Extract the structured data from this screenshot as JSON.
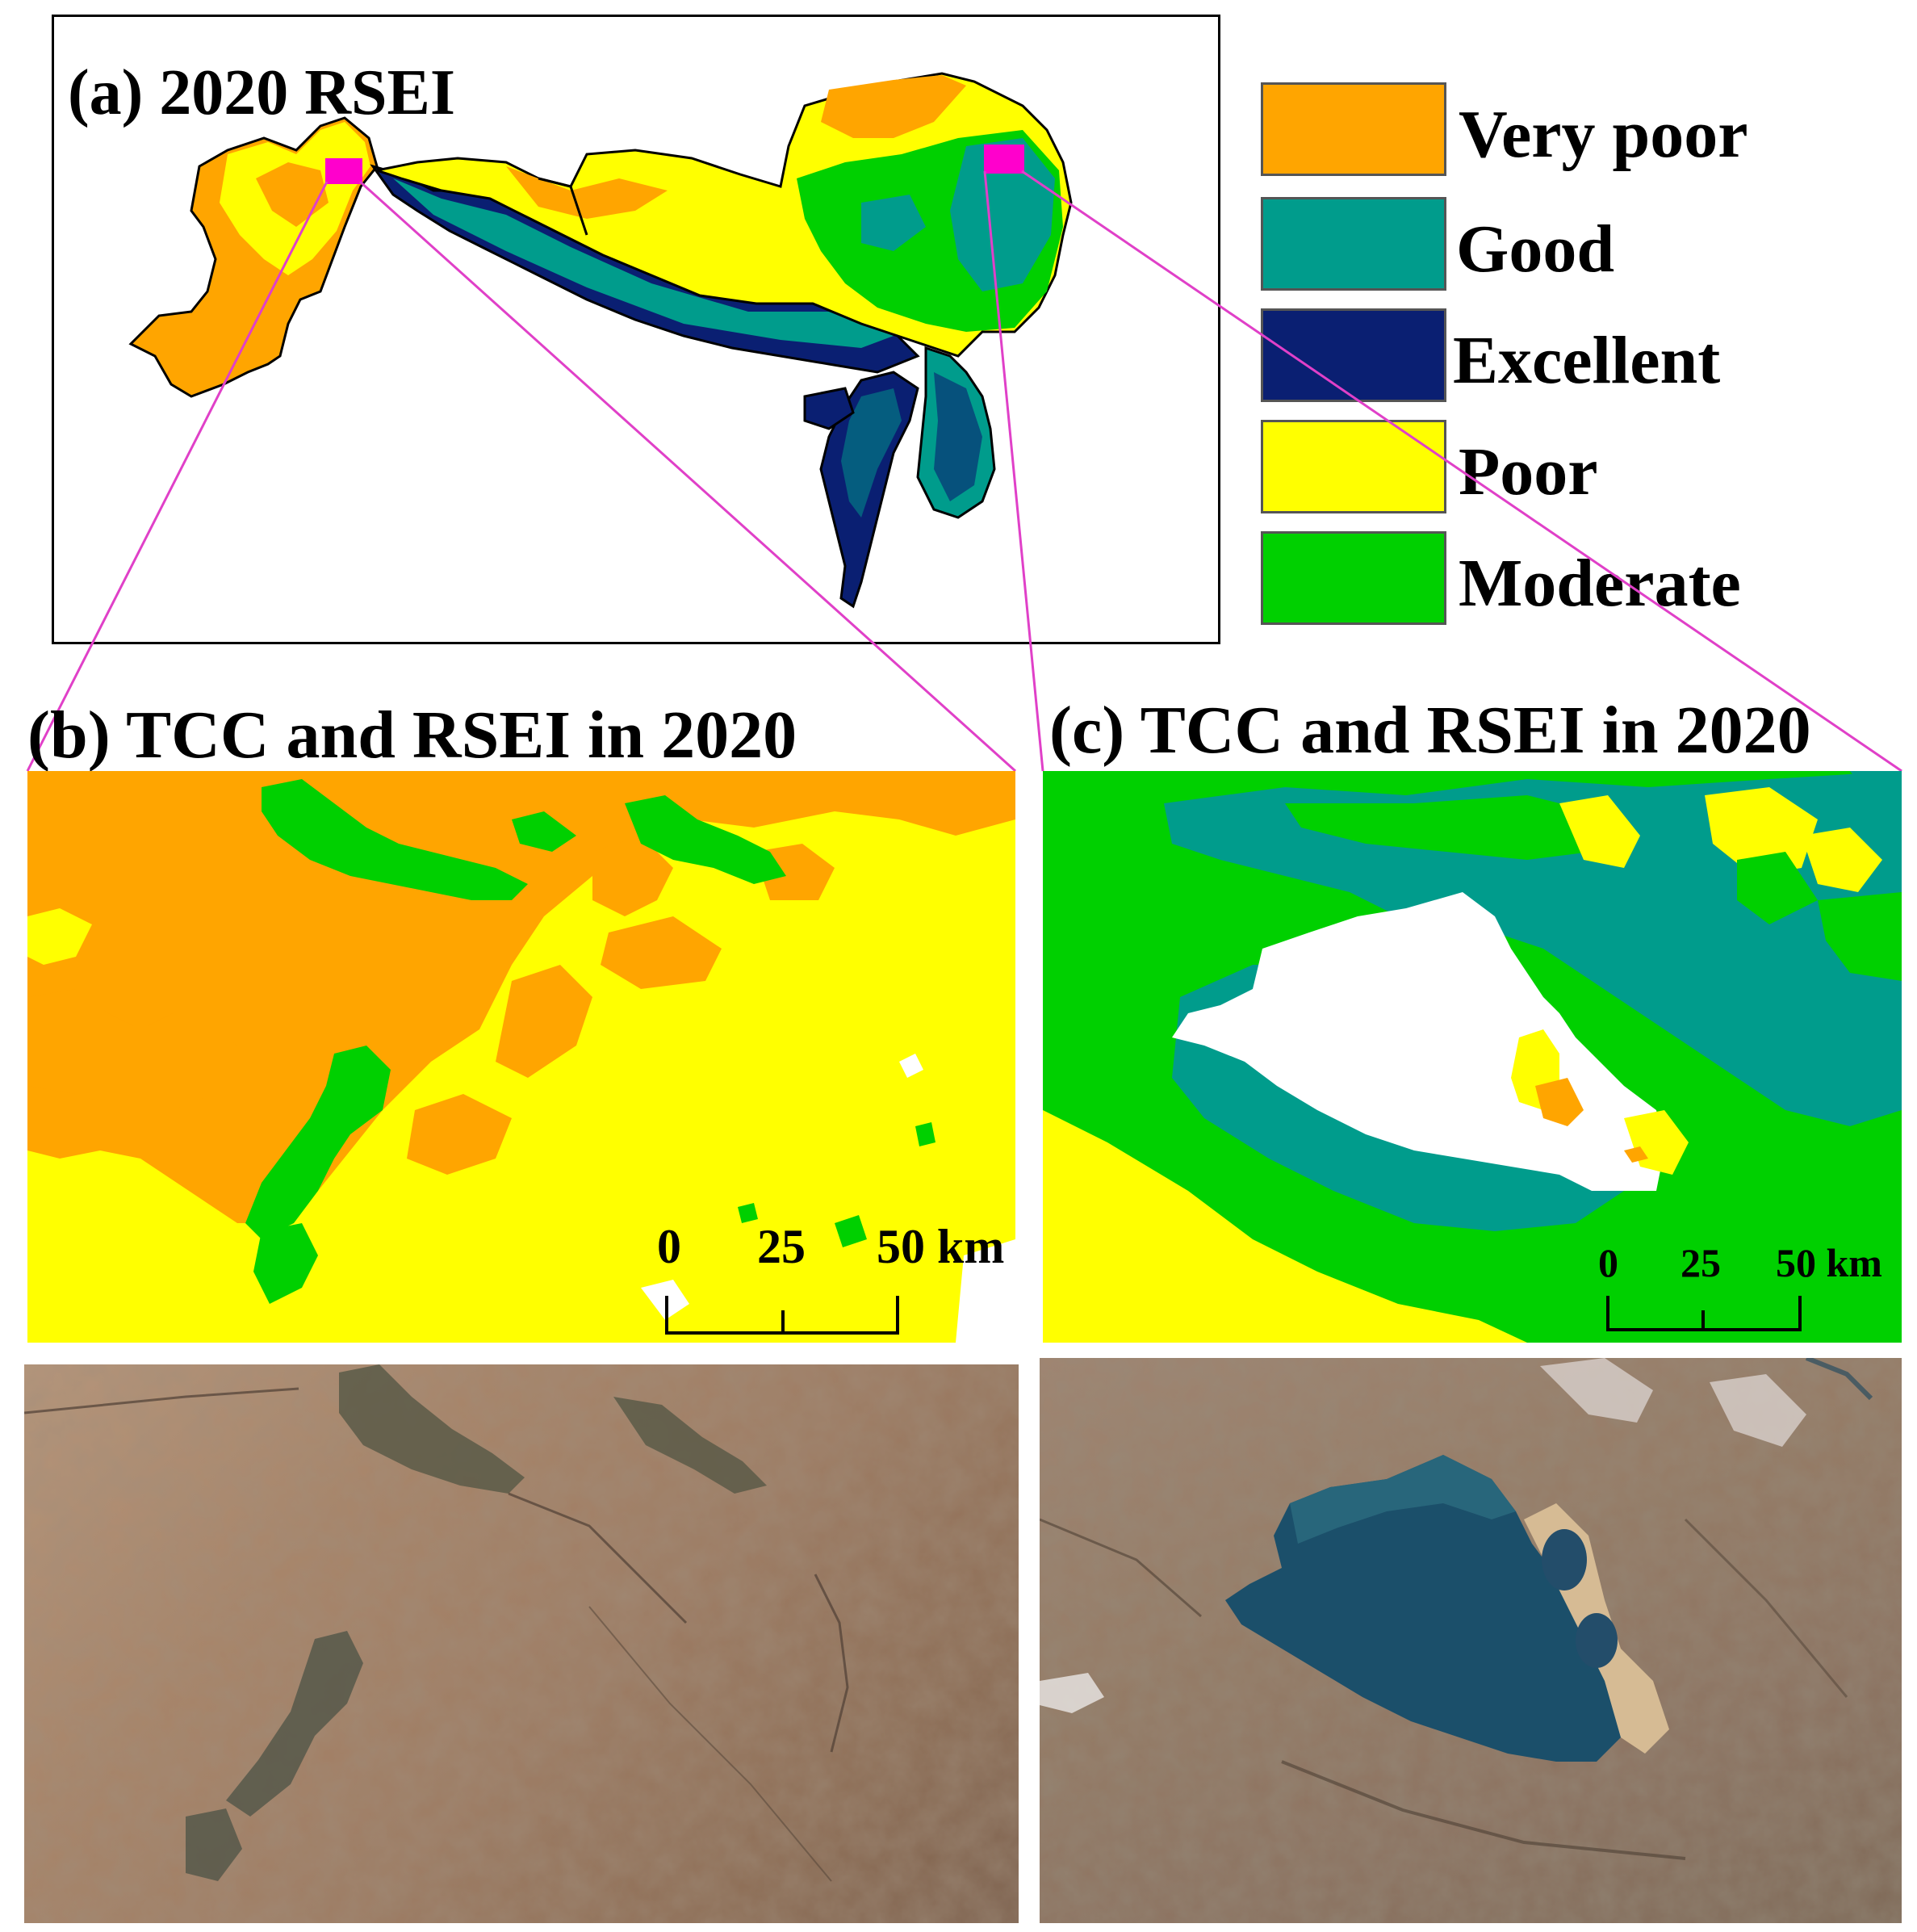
{
  "panels": {
    "a": {
      "title": "(a) 2020 RSEI"
    },
    "b": {
      "title": "(b) TCC and RSEI in 2020",
      "scale": {
        "t0": "0",
        "t1": "25",
        "t2": "50 km"
      }
    },
    "c": {
      "title": "(c) TCC and RSEI in 2020",
      "scale": {
        "t0": "0",
        "t1": "25",
        "t2": "50 km"
      }
    }
  },
  "legend": [
    {
      "label": "Very poor",
      "color": "#ffa500"
    },
    {
      "label": "Good",
      "color": "#009c8c"
    },
    {
      "label": "Excellent",
      "color": "#0a1f72"
    },
    {
      "label": "Poor",
      "color": "#ffff00"
    },
    {
      "label": "Moderate",
      "color": "#00d000"
    }
  ],
  "colors": {
    "very_poor": "#ffa500",
    "poor": "#ffff00",
    "moderate": "#00d000",
    "good": "#009c8c",
    "excellent": "#0a1f72",
    "highlight": "#ff00cc",
    "connector": "#e040c8"
  }
}
